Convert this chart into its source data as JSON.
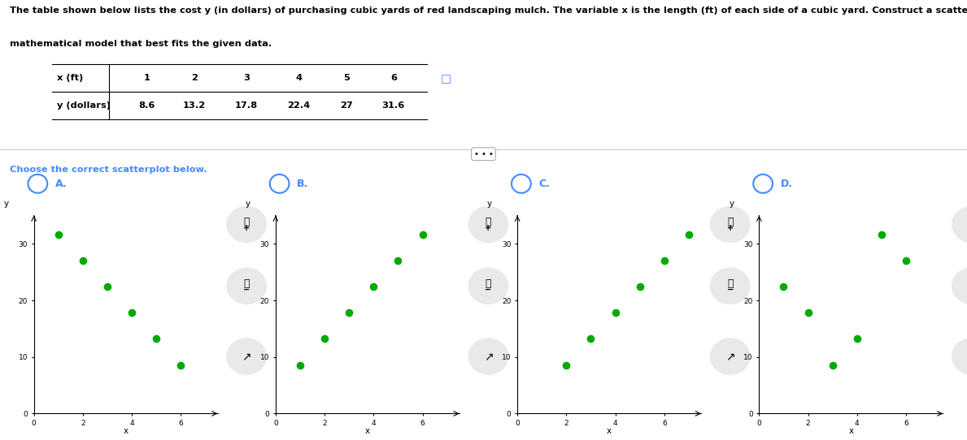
{
  "title_line1": "The table shown below lists the cost y (in dollars) of purchasing cubic yards of red landscaping mulch. The variable x is the length (ft) of each side of a cubic yard. Construct a scatterplot and identify the",
  "title_line2": "mathematical model that best fits the given data.",
  "choose_text": "Choose the correct scatterplot below.",
  "plot_labels": [
    "A.",
    "B.",
    "C.",
    "D."
  ],
  "dot_color": "#00aa00",
  "dot_size": 35,
  "xlim": [
    0,
    7.5
  ],
  "ylim": [
    0,
    35
  ],
  "xticks": [
    0,
    2,
    4,
    6
  ],
  "yticks": [
    0,
    10,
    20,
    30
  ],
  "xlabel": "x",
  "ylabel": "y",
  "background_color": "#ffffff",
  "radio_color": "#4488ff",
  "label_color": "#4488ff",
  "table_x_vals": [
    "1",
    "2",
    "3",
    "4",
    "5",
    "6"
  ],
  "table_y_vals": [
    "8.6",
    "13.2",
    "17.8",
    "22.4",
    "27",
    "31.6"
  ],
  "plot_A_x": [
    1,
    2,
    3,
    4,
    5,
    6
  ],
  "plot_A_y": [
    31.6,
    27.0,
    22.4,
    17.8,
    13.2,
    8.6
  ],
  "plot_B_x": [
    1,
    2,
    3,
    4,
    5,
    6
  ],
  "plot_B_y": [
    8.6,
    13.2,
    17.8,
    22.4,
    27.0,
    31.6
  ],
  "plot_C_x": [
    2,
    3,
    4,
    5,
    6,
    7
  ],
  "plot_C_y": [
    8.6,
    13.2,
    17.8,
    22.4,
    27.0,
    31.6
  ],
  "plot_D_x": [
    1,
    2,
    3,
    4,
    5,
    6
  ],
  "plot_D_y": [
    22.4,
    17.8,
    8.6,
    13.2,
    31.6,
    27.0
  ]
}
